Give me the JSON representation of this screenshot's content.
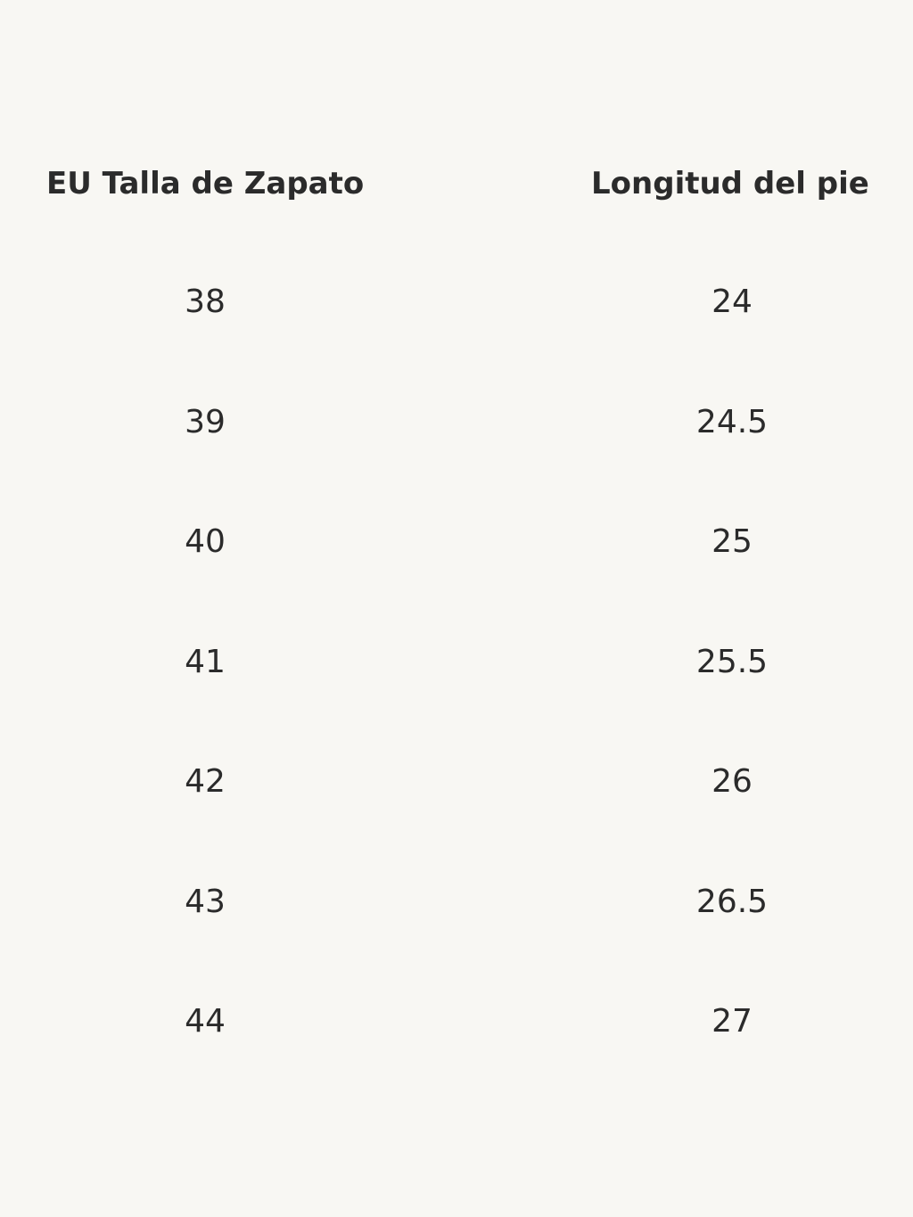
{
  "table": {
    "headers": [
      "EU Talla de Zapato",
      "Longitud del pie"
    ],
    "rows": [
      [
        "38",
        "24"
      ],
      [
        "39",
        "24.5"
      ],
      [
        "40",
        "25"
      ],
      [
        "41",
        "25.5"
      ],
      [
        "42",
        "26"
      ],
      [
        "43",
        "26.5"
      ],
      [
        "44",
        "27"
      ]
    ]
  }
}
